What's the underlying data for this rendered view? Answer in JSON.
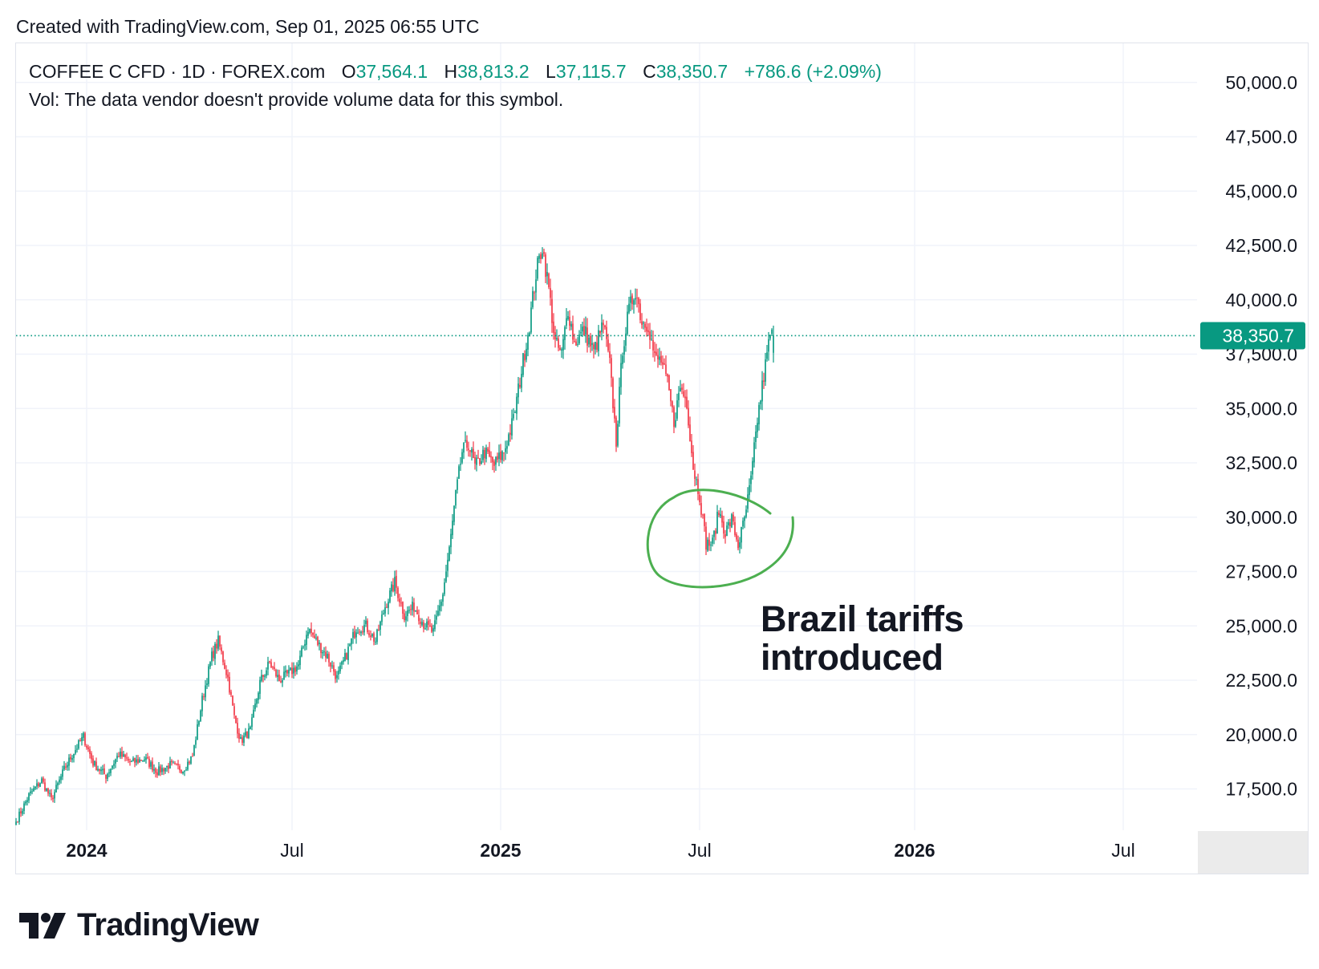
{
  "header": {
    "created": "Created with TradingView.com, Sep 01, 2025 06:55 UTC"
  },
  "legend": {
    "symbol": "COFFEE C CFD · 1D · FOREX.com",
    "o_label": "O",
    "o_value": "37,564.1",
    "h_label": "H",
    "h_value": "38,813.2",
    "l_label": "L",
    "l_value": "37,115.7",
    "c_label": "C",
    "c_value": "38,350.7",
    "change": "+786.6 (+2.09%)",
    "volume_note": "Vol: The data vendor doesn't provide volume data for this symbol."
  },
  "annotation": {
    "line1": "Brazil tariffs",
    "line2": "introduced"
  },
  "brand": {
    "name": "TradingView"
  },
  "colors": {
    "up": "#089981",
    "down": "#f23645",
    "grid": "#f0f3fa",
    "circle": "#4caf50",
    "text": "#131722"
  },
  "chart_data": {
    "type": "candlestick",
    "title": "COFFEE C CFD · 1D · FOREX.com",
    "ylim": [
      15600,
      51800
    ],
    "y_ticks": [
      17500,
      20000,
      22500,
      25000,
      27500,
      30000,
      32500,
      35000,
      37500,
      40000,
      42500,
      45000,
      47500,
      50000
    ],
    "y_tick_labels": [
      "17,500.0",
      "20,000.0",
      "22,500.0",
      "25,000.0",
      "27,500.0",
      "30,000.0",
      "32,500.0",
      "35,000.0",
      "37,500.0",
      "40,000.0",
      "42,500.0",
      "45,000.0",
      "47,500.0",
      "50,000.0"
    ],
    "x_ticks": [
      {
        "label": "2024",
        "bold": true,
        "index": 44
      },
      {
        "label": "Jul",
        "bold": false,
        "index": 172
      },
      {
        "label": "2025",
        "bold": true,
        "index": 302
      },
      {
        "label": "Jul",
        "bold": false,
        "index": 426
      },
      {
        "label": "2026",
        "bold": true,
        "index": 560
      },
      {
        "label": "Jul",
        "bold": false,
        "index": 690
      }
    ],
    "x_domain": [
      0,
      736
    ],
    "last_price": 38350.7,
    "last_price_label": "38,350.7",
    "anchors": [
      [
        0,
        16000
      ],
      [
        8,
        17200
      ],
      [
        16,
        17900
      ],
      [
        22,
        17000
      ],
      [
        30,
        18400
      ],
      [
        36,
        19200
      ],
      [
        42,
        19900
      ],
      [
        48,
        18700
      ],
      [
        56,
        18100
      ],
      [
        64,
        19100
      ],
      [
        72,
        18700
      ],
      [
        80,
        18900
      ],
      [
        88,
        18300
      ],
      [
        96,
        18600
      ],
      [
        104,
        18400
      ],
      [
        110,
        19000
      ],
      [
        116,
        21600
      ],
      [
        122,
        23600
      ],
      [
        126,
        24300
      ],
      [
        132,
        22600
      ],
      [
        136,
        20800
      ],
      [
        140,
        19700
      ],
      [
        146,
        20200
      ],
      [
        152,
        22400
      ],
      [
        158,
        23300
      ],
      [
        164,
        22500
      ],
      [
        170,
        22800
      ],
      [
        176,
        23200
      ],
      [
        182,
        24900
      ],
      [
        188,
        24200
      ],
      [
        194,
        23600
      ],
      [
        200,
        22600
      ],
      [
        206,
        23700
      ],
      [
        212,
        24900
      ],
      [
        218,
        25000
      ],
      [
        224,
        24300
      ],
      [
        230,
        25900
      ],
      [
        236,
        27000
      ],
      [
        242,
        25500
      ],
      [
        248,
        25900
      ],
      [
        254,
        25100
      ],
      [
        260,
        24700
      ],
      [
        266,
        26500
      ],
      [
        270,
        28500
      ],
      [
        274,
        31000
      ],
      [
        278,
        33000
      ],
      [
        282,
        33400
      ],
      [
        286,
        32300
      ],
      [
        292,
        33000
      ],
      [
        298,
        32400
      ],
      [
        304,
        33000
      ],
      [
        310,
        34500
      ],
      [
        316,
        37200
      ],
      [
        320,
        38900
      ],
      [
        324,
        41200
      ],
      [
        328,
        42500
      ],
      [
        332,
        40500
      ],
      [
        336,
        38000
      ],
      [
        340,
        37500
      ],
      [
        344,
        39600
      ],
      [
        348,
        38000
      ],
      [
        354,
        38600
      ],
      [
        360,
        37600
      ],
      [
        366,
        38900
      ],
      [
        370,
        37000
      ],
      [
        374,
        33500
      ],
      [
        378,
        37800
      ],
      [
        382,
        39500
      ],
      [
        386,
        40500
      ],
      [
        390,
        39000
      ],
      [
        394,
        38900
      ],
      [
        398,
        37300
      ],
      [
        402,
        37200
      ],
      [
        406,
        36100
      ],
      [
        410,
        34400
      ],
      [
        414,
        36000
      ],
      [
        418,
        35300
      ],
      [
        422,
        32300
      ],
      [
        426,
        31000
      ],
      [
        430,
        28800
      ],
      [
        434,
        28800
      ],
      [
        438,
        30300
      ],
      [
        442,
        29300
      ],
      [
        446,
        29900
      ],
      [
        450,
        28700
      ],
      [
        454,
        29900
      ],
      [
        458,
        31700
      ],
      [
        462,
        34500
      ],
      [
        466,
        36500
      ],
      [
        470,
        38400
      ],
      [
        472,
        38350.7
      ]
    ],
    "ohlc_last": {
      "open": 37564.1,
      "high": 38813.2,
      "low": 37115.7,
      "close": 38350.7
    }
  }
}
